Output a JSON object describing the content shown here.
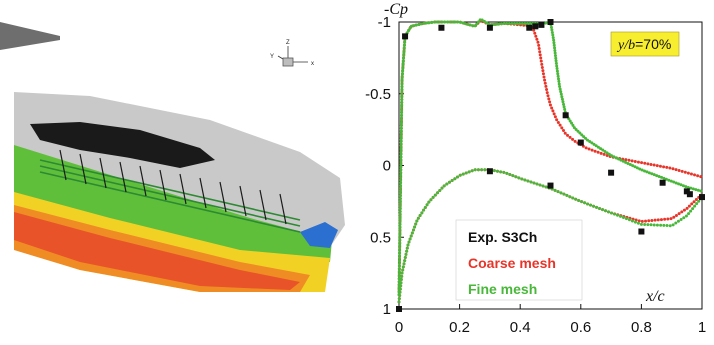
{
  "render": {
    "axis_labels": {
      "x": "x",
      "y": "Y",
      "z": "Z"
    }
  },
  "chart_data": {
    "type": "line",
    "ylabel": "-Cp",
    "xlabel": "x/c",
    "xlim": [
      0,
      1
    ],
    "ylim": [
      1,
      -1
    ],
    "y_inverted": true,
    "x_ticks": [
      0,
      0.2,
      0.4,
      0.6,
      0.8,
      1
    ],
    "x_tick_labels": [
      "0",
      "0.2",
      "0.4",
      "0.6",
      "0.8",
      "1"
    ],
    "y_ticks": [
      -1,
      -0.5,
      0,
      0.5,
      1
    ],
    "y_tick_labels": [
      "-1",
      "-0.5",
      "0",
      "0.5",
      "1"
    ],
    "station_label": {
      "prefix": "y/b",
      "suffix": "=70%"
    },
    "legend_placement": "bottom-left",
    "colors": {
      "exp": "#111111",
      "coarse": "#e8352a",
      "fine": "#49b83a",
      "tag_bg": "#f6ee2e"
    },
    "series": [
      {
        "name": "Exp. S3Ch",
        "style": "squares",
        "x": [
          0.0,
          0.02,
          0.14,
          0.3,
          0.43,
          0.45,
          0.47,
          0.5,
          0.55,
          0.6,
          0.7,
          0.87,
          0.95,
          1.0,
          0.0,
          0.3,
          0.5,
          0.8,
          0.96
        ],
        "y": [
          1.0,
          -0.9,
          -0.96,
          -0.96,
          -0.96,
          -0.97,
          -0.98,
          -1.0,
          -0.35,
          -0.16,
          0.05,
          0.12,
          0.18,
          0.22,
          1.0,
          0.04,
          0.14,
          0.46,
          0.2
        ]
      },
      {
        "name": "Coarse mesh",
        "style": "dots",
        "upper": {
          "x": [
            0.0,
            0.01,
            0.02,
            0.04,
            0.08,
            0.12,
            0.2,
            0.25,
            0.27,
            0.3,
            0.35,
            0.4,
            0.44,
            0.46,
            0.47,
            0.48,
            0.49,
            0.5,
            0.52,
            0.55,
            0.58,
            0.62,
            0.7,
            0.8,
            0.9,
            0.95,
            1.0
          ],
          "y": [
            0.9,
            -0.6,
            -0.9,
            -0.97,
            -0.99,
            -1.0,
            -1.0,
            -0.97,
            -1.01,
            -0.98,
            -0.99,
            -0.98,
            -0.97,
            -0.85,
            -0.72,
            -0.6,
            -0.5,
            -0.42,
            -0.32,
            -0.22,
            -0.17,
            -0.12,
            -0.06,
            -0.02,
            0.02,
            0.05,
            0.08
          ]
        },
        "lower": {
          "x": [
            0.0,
            0.01,
            0.03,
            0.06,
            0.1,
            0.15,
            0.2,
            0.25,
            0.3,
            0.35,
            0.4,
            0.5,
            0.6,
            0.7,
            0.8,
            0.9,
            0.95,
            1.0
          ],
          "y": [
            0.95,
            0.75,
            0.55,
            0.38,
            0.25,
            0.14,
            0.07,
            0.03,
            0.03,
            0.05,
            0.09,
            0.16,
            0.25,
            0.33,
            0.39,
            0.37,
            0.3,
            0.2
          ]
        }
      },
      {
        "name": "Fine mesh",
        "style": "dots",
        "upper": {
          "x": [
            0.0,
            0.01,
            0.02,
            0.04,
            0.08,
            0.12,
            0.2,
            0.25,
            0.27,
            0.3,
            0.35,
            0.4,
            0.45,
            0.48,
            0.5,
            0.51,
            0.52,
            0.53,
            0.55,
            0.58,
            0.62,
            0.7,
            0.8,
            0.9,
            0.95,
            1.0
          ],
          "y": [
            0.9,
            -0.6,
            -0.9,
            -0.97,
            -0.99,
            -1.0,
            -1.0,
            -0.97,
            -1.02,
            -0.98,
            -0.99,
            -0.99,
            -0.99,
            -0.99,
            -1.0,
            -0.88,
            -0.7,
            -0.55,
            -0.36,
            -0.26,
            -0.18,
            -0.07,
            0.03,
            0.11,
            0.15,
            0.18
          ]
        },
        "lower": {
          "x": [
            0.0,
            0.01,
            0.03,
            0.06,
            0.1,
            0.15,
            0.2,
            0.25,
            0.3,
            0.35,
            0.4,
            0.5,
            0.6,
            0.7,
            0.8,
            0.9,
            0.95,
            1.0
          ],
          "y": [
            0.95,
            0.75,
            0.55,
            0.38,
            0.25,
            0.14,
            0.07,
            0.03,
            0.03,
            0.05,
            0.09,
            0.16,
            0.25,
            0.33,
            0.41,
            0.42,
            0.35,
            0.22
          ]
        }
      }
    ]
  }
}
